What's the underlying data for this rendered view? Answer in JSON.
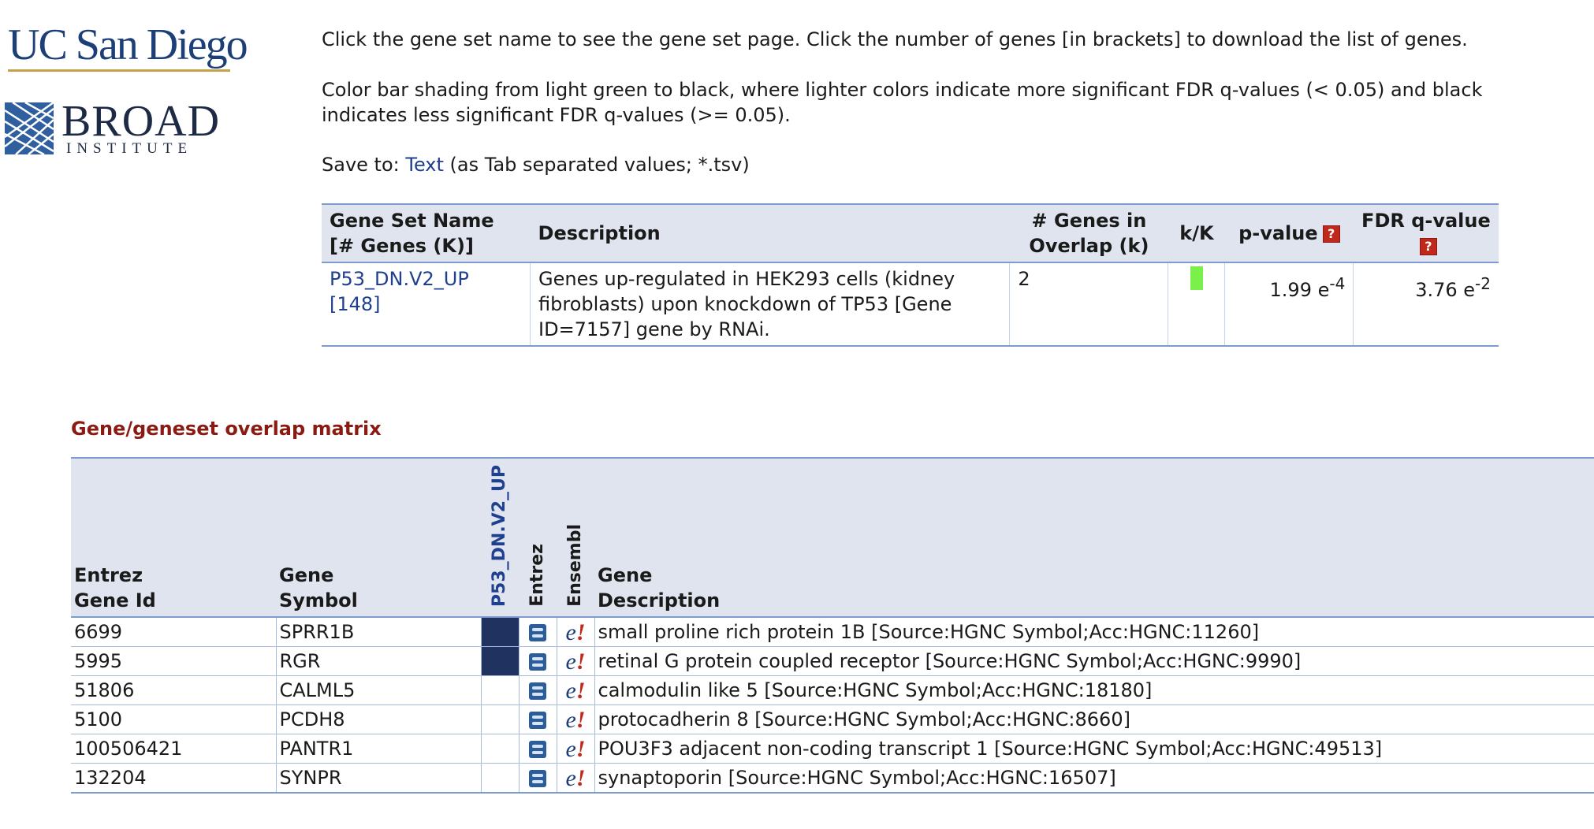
{
  "logos": {
    "ucsd": "UC San Diego",
    "broad": "BROAD",
    "broad_sub": "INSTITUTE"
  },
  "intro": {
    "line1": "Click the gene set name to see the gene set page. Click the number of genes [in brackets] to download the list of genes.",
    "line2": "Color bar shading from light green to black, where lighter colors indicate more significant FDR q-values (< 0.05) and black indicates less significant FDR q-values (>= 0.05).",
    "save_prefix": "Save to:",
    "save_link": "Text",
    "save_suffix": "(as Tab separated values; *.tsv)"
  },
  "results": {
    "headers": {
      "name": "Gene Set Name [# Genes (K)]",
      "description": "Description",
      "overlap": "# Genes in Overlap (k)",
      "kK": "k/K",
      "pvalue": "p-value",
      "fdr": "FDR q-value"
    },
    "rows": [
      {
        "name": "P53_DN.V2_UP",
        "genes_count": "[148]",
        "description": "Genes up-regulated in HEK293 cells (kidney fibroblasts) upon knockdown of TP53 [Gene ID=7157] gene by RNAi.",
        "overlap": "2",
        "kK_fraction": 0.0135,
        "kK_color": "#7cf04a",
        "pvalue_base": "1.99 e",
        "pvalue_exp": "-4",
        "fdr_base": "3.76 e",
        "fdr_exp": "-2"
      }
    ]
  },
  "matrix": {
    "title": "Gene/geneset overlap matrix",
    "headers": {
      "entrez_id": "Entrez Gene Id",
      "symbol": "Gene Symbol",
      "geneset": "P53_DN.V2_UP",
      "entrez": "Entrez",
      "ensembl": "Ensembl",
      "description": "Gene Description"
    },
    "member_color": "#1f3260",
    "rows": [
      {
        "id": "6699",
        "symbol": "SPRR1B",
        "member": true,
        "description": "small proline rich protein 1B [Source:HGNC Symbol;Acc:HGNC:11260]"
      },
      {
        "id": "5995",
        "symbol": "RGR",
        "member": true,
        "description": "retinal G protein coupled receptor [Source:HGNC Symbol;Acc:HGNC:9990]"
      },
      {
        "id": "51806",
        "symbol": "CALML5",
        "member": false,
        "description": "calmodulin like 5 [Source:HGNC Symbol;Acc:HGNC:18180]"
      },
      {
        "id": "5100",
        "symbol": "PCDH8",
        "member": false,
        "description": "protocadherin 8 [Source:HGNC Symbol;Acc:HGNC:8660]"
      },
      {
        "id": "100506421",
        "symbol": "PANTR1",
        "member": false,
        "description": "POU3F3 adjacent non-coding transcript 1 [Source:HGNC Symbol;Acc:HGNC:49513]"
      },
      {
        "id": "132204",
        "symbol": "SYNPR",
        "member": false,
        "description": "synaptoporin [Source:HGNC Symbol;Acc:HGNC:16507]"
      }
    ]
  }
}
